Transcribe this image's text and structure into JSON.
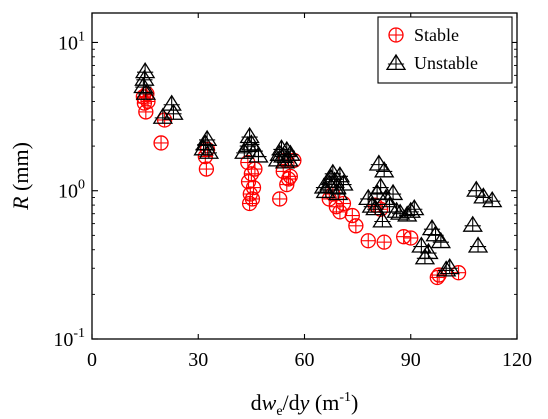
{
  "chart_data": {
    "type": "scatter",
    "title": "",
    "xlabel": {
      "parts": [
        {
          "text": "d",
          "style": "normal"
        },
        {
          "text": "w",
          "style": "italic"
        },
        {
          "text": "e",
          "style": "sub"
        },
        {
          "text": "/d",
          "style": "normal"
        },
        {
          "text": "y",
          "style": "italic"
        },
        {
          "text": " (m",
          "style": "normal"
        },
        {
          "text": "-1",
          "style": "sup"
        },
        {
          "text": ")",
          "style": "normal"
        }
      ]
    },
    "ylabel": {
      "parts": [
        {
          "text": "R",
          "style": "italic"
        },
        {
          "text": " (mm)",
          "style": "normal"
        }
      ]
    },
    "xlim": [
      0,
      120
    ],
    "ylim": [
      0.1,
      15.8
    ],
    "yscale": "log",
    "xticks": [
      {
        "value": 0,
        "label": "0"
      },
      {
        "value": 30,
        "label": "30"
      },
      {
        "value": 60,
        "label": "60"
      },
      {
        "value": 90,
        "label": "90"
      },
      {
        "value": 120,
        "label": "120"
      }
    ],
    "yticks": [
      {
        "value": 0.1,
        "base": "10",
        "exp": "-1"
      },
      {
        "value": 1,
        "base": "10",
        "exp": "0"
      },
      {
        "value": 10,
        "base": "10",
        "exp": "1"
      }
    ],
    "grid": false,
    "legend_position": "top-right",
    "series": [
      {
        "name": "Stable",
        "marker": "circle-plus",
        "color": "#ff0000",
        "points": [
          [
            14.5,
            4.3
          ],
          [
            14.8,
            3.9
          ],
          [
            15.2,
            3.4
          ],
          [
            15.5,
            4.5
          ],
          [
            15.8,
            4.0
          ],
          [
            19.5,
            2.1
          ],
          [
            20.5,
            3.0
          ],
          [
            32.0,
            1.7
          ],
          [
            32.3,
            1.4
          ],
          [
            32.6,
            1.9
          ],
          [
            44.0,
            1.55
          ],
          [
            44.2,
            1.15
          ],
          [
            44.5,
            0.82
          ],
          [
            44.7,
            0.95
          ],
          [
            45.0,
            1.3
          ],
          [
            45.3,
            0.88
          ],
          [
            45.6,
            1.05
          ],
          [
            46.0,
            1.4
          ],
          [
            53.0,
            0.88
          ],
          [
            54.0,
            1.35
          ],
          [
            54.5,
            1.6
          ],
          [
            55.0,
            1.1
          ],
          [
            55.5,
            1.2
          ],
          [
            56.0,
            1.25
          ],
          [
            57.0,
            1.6
          ],
          [
            67.0,
            0.88
          ],
          [
            68.0,
            0.95
          ],
          [
            69.0,
            0.78
          ],
          [
            70.0,
            0.72
          ],
          [
            71.0,
            0.82
          ],
          [
            73.5,
            0.68
          ],
          [
            74.5,
            0.58
          ],
          [
            78.0,
            0.46
          ],
          [
            80.0,
            0.8
          ],
          [
            81.5,
            0.75
          ],
          [
            82.5,
            0.45
          ],
          [
            88.0,
            0.49
          ],
          [
            90.0,
            0.48
          ],
          [
            97.5,
            0.26
          ],
          [
            98.0,
            0.27
          ],
          [
            103.5,
            0.28
          ]
        ]
      },
      {
        "name": "Unstable",
        "marker": "triangle-plus",
        "color": "#000000",
        "points": [
          [
            14.5,
            5.0
          ],
          [
            14.8,
            5.6
          ],
          [
            15.0,
            6.3
          ],
          [
            15.2,
            4.5
          ],
          [
            20.0,
            3.1
          ],
          [
            22.5,
            3.8
          ],
          [
            23.0,
            3.3
          ],
          [
            31.5,
            1.9
          ],
          [
            32.0,
            2.05
          ],
          [
            32.5,
            2.2
          ],
          [
            33.0,
            1.8
          ],
          [
            43.0,
            1.8
          ],
          [
            44.0,
            2.0
          ],
          [
            44.5,
            2.3
          ],
          [
            45.0,
            2.05
          ],
          [
            46.0,
            1.85
          ],
          [
            47.0,
            1.7
          ],
          [
            52.5,
            1.6
          ],
          [
            53.0,
            1.75
          ],
          [
            53.5,
            1.9
          ],
          [
            54.0,
            1.7
          ],
          [
            54.5,
            1.55
          ],
          [
            55.0,
            1.85
          ],
          [
            55.5,
            1.6
          ],
          [
            56.0,
            1.75
          ],
          [
            65.5,
            1.05
          ],
          [
            66.0,
            0.98
          ],
          [
            67.0,
            1.1
          ],
          [
            67.5,
            1.2
          ],
          [
            68.0,
            1.3
          ],
          [
            68.5,
            1.15
          ],
          [
            69.0,
            1.05
          ],
          [
            69.5,
            0.95
          ],
          [
            70.0,
            1.25
          ],
          [
            71.0,
            1.1
          ],
          [
            78.0,
            0.88
          ],
          [
            79.0,
            0.78
          ],
          [
            80.0,
            0.75
          ],
          [
            80.5,
            0.95
          ],
          [
            81.0,
            1.5
          ],
          [
            81.5,
            1.05
          ],
          [
            82.0,
            0.62
          ],
          [
            82.5,
            1.35
          ],
          [
            83.0,
            0.88
          ],
          [
            84.0,
            0.78
          ],
          [
            85.0,
            0.95
          ],
          [
            86.0,
            0.72
          ],
          [
            87.0,
            0.7
          ],
          [
            89.0,
            0.68
          ],
          [
            90.0,
            0.72
          ],
          [
            91.0,
            0.75
          ],
          [
            93.0,
            0.42
          ],
          [
            94.0,
            0.35
          ],
          [
            95.0,
            0.38
          ],
          [
            96.0,
            0.55
          ],
          [
            97.0,
            0.5
          ],
          [
            98.5,
            0.45
          ],
          [
            100.0,
            0.29
          ],
          [
            101.0,
            0.3
          ],
          [
            107.5,
            0.58
          ],
          [
            108.5,
            1.0
          ],
          [
            109.0,
            0.42
          ],
          [
            110.5,
            0.9
          ],
          [
            113.0,
            0.85
          ]
        ]
      }
    ]
  }
}
